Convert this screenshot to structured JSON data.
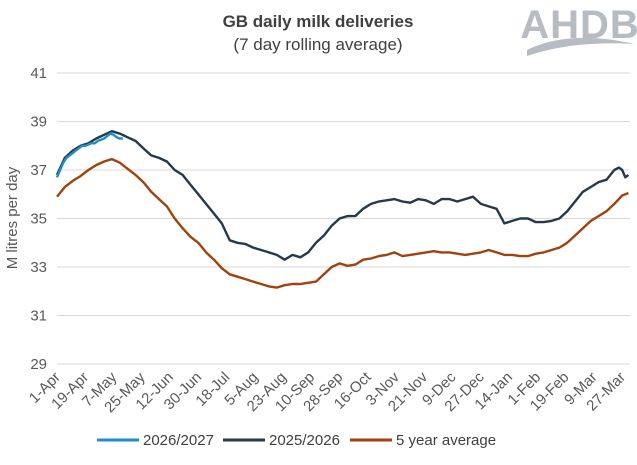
{
  "chart_data": {
    "type": "line",
    "title": "GB daily milk deliveries",
    "subtitle": "(7 day rolling average)",
    "ylabel": "M litres per day",
    "xlabel": "",
    "ylim": [
      29,
      41
    ],
    "yticks": [
      29,
      31,
      33,
      35,
      37,
      39,
      41
    ],
    "xlim": [
      0,
      365
    ],
    "x_tick_labels": [
      "1-Apr",
      "19-Apr",
      "7-May",
      "25-May",
      "12-Jun",
      "30-Jun",
      "18-Jul",
      "5-Aug",
      "23-Aug",
      "10-Sep",
      "28-Sep",
      "16-Oct",
      "3-Nov",
      "21-Nov",
      "9-Dec",
      "27-Dec",
      "14-Jan",
      "1-Feb",
      "19-Feb",
      "9-Mar",
      "27-Mar"
    ],
    "x_tick_days": [
      0,
      18,
      36,
      54,
      72,
      90,
      108,
      126,
      144,
      162,
      180,
      198,
      216,
      234,
      252,
      270,
      288,
      306,
      324,
      342,
      360
    ],
    "grid": "horizontal",
    "legend_position": "bottom",
    "series": [
      {
        "name": "2026/2027",
        "color": "#1e8ec8",
        "x": [
          0,
          2,
          4,
          6,
          8,
          10,
          12,
          14,
          16,
          18,
          20,
          22,
          24,
          26,
          28,
          30,
          32,
          34,
          36,
          38,
          40,
          42
        ],
        "y": [
          36.7,
          37.0,
          37.3,
          37.5,
          37.6,
          37.7,
          37.8,
          37.9,
          38.0,
          38.0,
          38.05,
          38.1,
          38.1,
          38.2,
          38.25,
          38.3,
          38.4,
          38.5,
          38.45,
          38.35,
          38.3,
          38.3
        ]
      },
      {
        "name": "2025/2026",
        "color": "#24394a",
        "x": [
          0,
          5,
          10,
          15,
          20,
          25,
          30,
          35,
          40,
          45,
          50,
          55,
          60,
          65,
          70,
          75,
          80,
          85,
          90,
          95,
          100,
          105,
          110,
          115,
          120,
          125,
          130,
          135,
          140,
          145,
          150,
          155,
          160,
          165,
          170,
          175,
          180,
          185,
          190,
          195,
          200,
          205,
          210,
          215,
          220,
          225,
          230,
          235,
          240,
          245,
          250,
          255,
          260,
          265,
          270,
          275,
          280,
          285,
          290,
          295,
          300,
          305,
          310,
          315,
          320,
          325,
          330,
          335,
          340,
          345,
          350,
          355,
          358,
          360,
          362,
          364
        ],
        "y": [
          36.8,
          37.5,
          37.8,
          38.0,
          38.1,
          38.3,
          38.45,
          38.6,
          38.5,
          38.35,
          38.2,
          37.9,
          37.6,
          37.5,
          37.35,
          37.0,
          36.8,
          36.4,
          36.0,
          35.6,
          35.2,
          34.8,
          34.1,
          34.0,
          33.95,
          33.8,
          33.7,
          33.6,
          33.5,
          33.3,
          33.5,
          33.4,
          33.6,
          34.0,
          34.3,
          34.7,
          35.0,
          35.1,
          35.1,
          35.4,
          35.6,
          35.7,
          35.75,
          35.8,
          35.7,
          35.65,
          35.8,
          35.75,
          35.6,
          35.8,
          35.8,
          35.7,
          35.8,
          35.9,
          35.6,
          35.5,
          35.4,
          34.8,
          34.9,
          35.0,
          35.0,
          34.85,
          34.85,
          34.9,
          35.0,
          35.3,
          35.7,
          36.1,
          36.3,
          36.5,
          36.6,
          37.0,
          37.1,
          37.0,
          36.7,
          36.8
        ]
      },
      {
        "name": "5 year average",
        "color": "#a0420c",
        "x": [
          0,
          5,
          10,
          15,
          20,
          25,
          30,
          35,
          40,
          45,
          50,
          55,
          60,
          65,
          70,
          75,
          80,
          85,
          90,
          95,
          100,
          105,
          110,
          115,
          120,
          125,
          130,
          135,
          140,
          145,
          150,
          155,
          160,
          165,
          170,
          175,
          180,
          185,
          190,
          195,
          200,
          205,
          210,
          215,
          220,
          225,
          230,
          235,
          240,
          245,
          250,
          255,
          260,
          265,
          270,
          275,
          280,
          285,
          290,
          295,
          300,
          305,
          310,
          315,
          320,
          325,
          330,
          335,
          340,
          345,
          350,
          355,
          360,
          364
        ],
        "y": [
          35.9,
          36.3,
          36.55,
          36.75,
          37.0,
          37.2,
          37.35,
          37.45,
          37.3,
          37.05,
          36.8,
          36.5,
          36.1,
          35.8,
          35.5,
          35.0,
          34.6,
          34.25,
          34.0,
          33.6,
          33.3,
          32.95,
          32.7,
          32.6,
          32.5,
          32.4,
          32.3,
          32.2,
          32.15,
          32.25,
          32.3,
          32.3,
          32.35,
          32.4,
          32.7,
          33.0,
          33.15,
          33.05,
          33.1,
          33.3,
          33.35,
          33.45,
          33.5,
          33.6,
          33.45,
          33.5,
          33.55,
          33.6,
          33.65,
          33.6,
          33.6,
          33.55,
          33.5,
          33.55,
          33.6,
          33.7,
          33.6,
          33.5,
          33.5,
          33.45,
          33.45,
          33.55,
          33.6,
          33.7,
          33.8,
          34.0,
          34.3,
          34.6,
          34.9,
          35.1,
          35.3,
          35.6,
          35.95,
          36.05
        ]
      }
    ]
  },
  "logo": {
    "text": "AHDB",
    "color": "#b7bcc3"
  },
  "colors": {
    "grid": "#d9d9d9",
    "axis_text": "#595959",
    "title": "#404040"
  }
}
